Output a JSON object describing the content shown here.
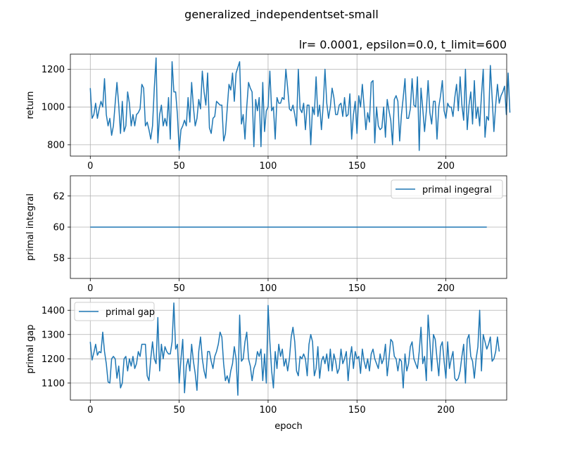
{
  "figure": {
    "suptitle": "generalized_independentset-small",
    "subtitle": "lr= 0.0001, epsilon=0.0, t_limit=600",
    "line_color": "#1f77b4",
    "grid_color": "#b0b0b0"
  },
  "chart_data": [
    {
      "type": "line",
      "ylabel": "return",
      "xlabel": "",
      "xlim": [
        -11.2,
        234.2
      ],
      "ylim": [
        740,
        1280
      ],
      "xticks": [
        0,
        50,
        100,
        150,
        200
      ],
      "yticks": [
        800,
        1000,
        1200
      ],
      "grid": true,
      "legend": null,
      "series": [
        {
          "values": [
            1100,
            940,
            960,
            1020,
            940,
            990,
            1030,
            1000,
            1150,
            960,
            900,
            940,
            850,
            900,
            1020,
            1130,
            1010,
            860,
            1030,
            870,
            900,
            1080,
            1020,
            900,
            960,
            900,
            960,
            970,
            990,
            1120,
            1100,
            900,
            920,
            880,
            830,
            900,
            1100,
            1260,
            810,
            960,
            1010,
            900,
            940,
            900,
            1050,
            830,
            1240,
            1080,
            1080,
            960,
            770,
            880,
            900,
            930,
            900,
            1050,
            920,
            1130,
            1000,
            900,
            940,
            1040,
            990,
            1190,
            1080,
            1010,
            1180,
            890,
            860,
            940,
            950,
            1030,
            1020,
            1010,
            1010,
            820,
            860,
            990,
            1120,
            1090,
            1180,
            1030,
            1180,
            1210,
            1240,
            910,
            960,
            830,
            1000,
            1130,
            1100,
            1080,
            790,
            1040,
            980,
            1050,
            790,
            1130,
            870,
            980,
            1000,
            1190,
            980,
            1000,
            830,
            1050,
            1020,
            1020,
            1050,
            1040,
            1200,
            1100,
            990,
            980,
            1010,
            960,
            900,
            1200,
            990,
            970,
            1020,
            880,
            1010,
            1010,
            800,
            1000,
            960,
            1160,
            950,
            1010,
            880,
            1010,
            1200,
            1020,
            940,
            1000,
            1100,
            1050,
            960,
            960,
            1010,
            1020,
            950,
            1050,
            950,
            960,
            1070,
            830,
            960,
            1030,
            860,
            1060,
            1000,
            1120,
            1000,
            880,
            970,
            920,
            1130,
            1140,
            810,
            1000,
            900,
            880,
            890,
            1000,
            840,
            1040,
            980,
            930,
            800,
            1040,
            1060,
            1030,
            820,
            960,
            1050,
            1150,
            940,
            940,
            990,
            1150,
            1010,
            1000,
            1160,
            770,
            1100,
            990,
            870,
            980,
            1140,
            970,
            910,
            1030,
            1030,
            830,
            1000,
            1060,
            1140,
            980,
            940,
            1020,
            1000,
            1000,
            950,
            1050,
            1120,
            980,
            1160,
            1010,
            930,
            1200,
            880,
            1010,
            1080,
            910,
            1140,
            940,
            1000,
            900,
            1060,
            1200,
            840,
            950,
            930,
            1220,
            1050,
            870,
            1010,
            1120,
            1020,
            1060,
            1080,
            1110,
            960,
            1180,
            970
          ]
        }
      ]
    },
    {
      "type": "line",
      "ylabel": "primal integral",
      "xlabel": "",
      "xlim": [
        -11.2,
        234.2
      ],
      "ylim": [
        56.7,
        63.3
      ],
      "xticks": [
        0,
        50,
        100,
        150,
        200
      ],
      "yticks": [
        58,
        60,
        62
      ],
      "grid": true,
      "legend": "upper right",
      "series": [
        {
          "name": "primal ingegral",
          "x": [
            0,
            223
          ],
          "values": [
            60,
            60
          ]
        }
      ]
    },
    {
      "type": "line",
      "ylabel": "primal gap",
      "xlabel": "epoch",
      "xlim": [
        -11.2,
        234.2
      ],
      "ylim": [
        1030,
        1450
      ],
      "xticks": [
        0,
        50,
        100,
        150,
        200
      ],
      "yticks": [
        1100,
        1200,
        1300,
        1400
      ],
      "grid": true,
      "legend": "upper left",
      "series": [
        {
          "name": "primal gap",
          "values": [
            1270,
            1195,
            1225,
            1260,
            1215,
            1230,
            1225,
            1310,
            1230,
            1180,
            1105,
            1100,
            1200,
            1210,
            1200,
            1120,
            1170,
            1080,
            1100,
            1200,
            1210,
            1150,
            1200,
            1170,
            1210,
            1160,
            1180,
            1230,
            1210,
            1260,
            1260,
            1260,
            1130,
            1110,
            1200,
            1270,
            1200,
            1180,
            1370,
            1150,
            1260,
            1200,
            1250,
            1230,
            1220,
            1220,
            1270,
            1430,
            1240,
            1260,
            1100,
            1200,
            1280,
            1060,
            1170,
            1200,
            1150,
            1260,
            1190,
            1140,
            1070,
            1230,
            1290,
            1200,
            1150,
            1120,
            1230,
            1230,
            1190,
            1160,
            1210,
            1230,
            1260,
            1310,
            1290,
            1180,
            1110,
            1130,
            1100,
            1150,
            1180,
            1250,
            1200,
            1050,
            1380,
            1190,
            1200,
            1270,
            1310,
            1200,
            1170,
            1110,
            1160,
            1180,
            1230,
            1210,
            1240,
            1110,
            1220,
            1100,
            1420,
            1270,
            1150,
            1080,
            1230,
            1160,
            1260,
            1210,
            1240,
            1170,
            1200,
            1150,
            1200,
            1290,
            1330,
            1270,
            1150,
            1130,
            1210,
            1200,
            1220,
            1200,
            1130,
            1260,
            1300,
            1270,
            1130,
            1160,
            1250,
            1120,
            1190,
            1210,
            1180,
            1220,
            1150,
            1240,
            1150,
            1220,
            1190,
            1140,
            1160,
            1240,
            1180,
            1200,
            1230,
            1110,
            1200,
            1250,
            1160,
            1230,
            1200,
            1210,
            1140,
            1240,
            1190,
            1160,
            1200,
            1150,
            1220,
            1240,
            1200,
            1180,
            1160,
            1220,
            1180,
            1200,
            1260,
            1130,
            1200,
            1280,
            1270,
            1210,
            1200,
            1150,
            1200,
            1190,
            1080,
            1220,
            1150,
            1180,
            1250,
            1270,
            1200,
            1180,
            1160,
            1230,
            1330,
            1180,
            1210,
            1110,
            1380,
            1270,
            1150,
            1300,
            1280,
            1200,
            1130,
            1250,
            1270,
            1190,
            1120,
            1270,
            1160,
            1200,
            1230,
            1120,
            1110,
            1120,
            1150,
            1210,
            1260,
            1100,
            1280,
            1300,
            1210,
            1190,
            1120,
            1200,
            1250,
            1400,
            1150,
            1300,
            1270,
            1240,
            1260,
            1290,
            1190,
            1200,
            1230,
            1290,
            1230
          ]
        }
      ]
    }
  ]
}
